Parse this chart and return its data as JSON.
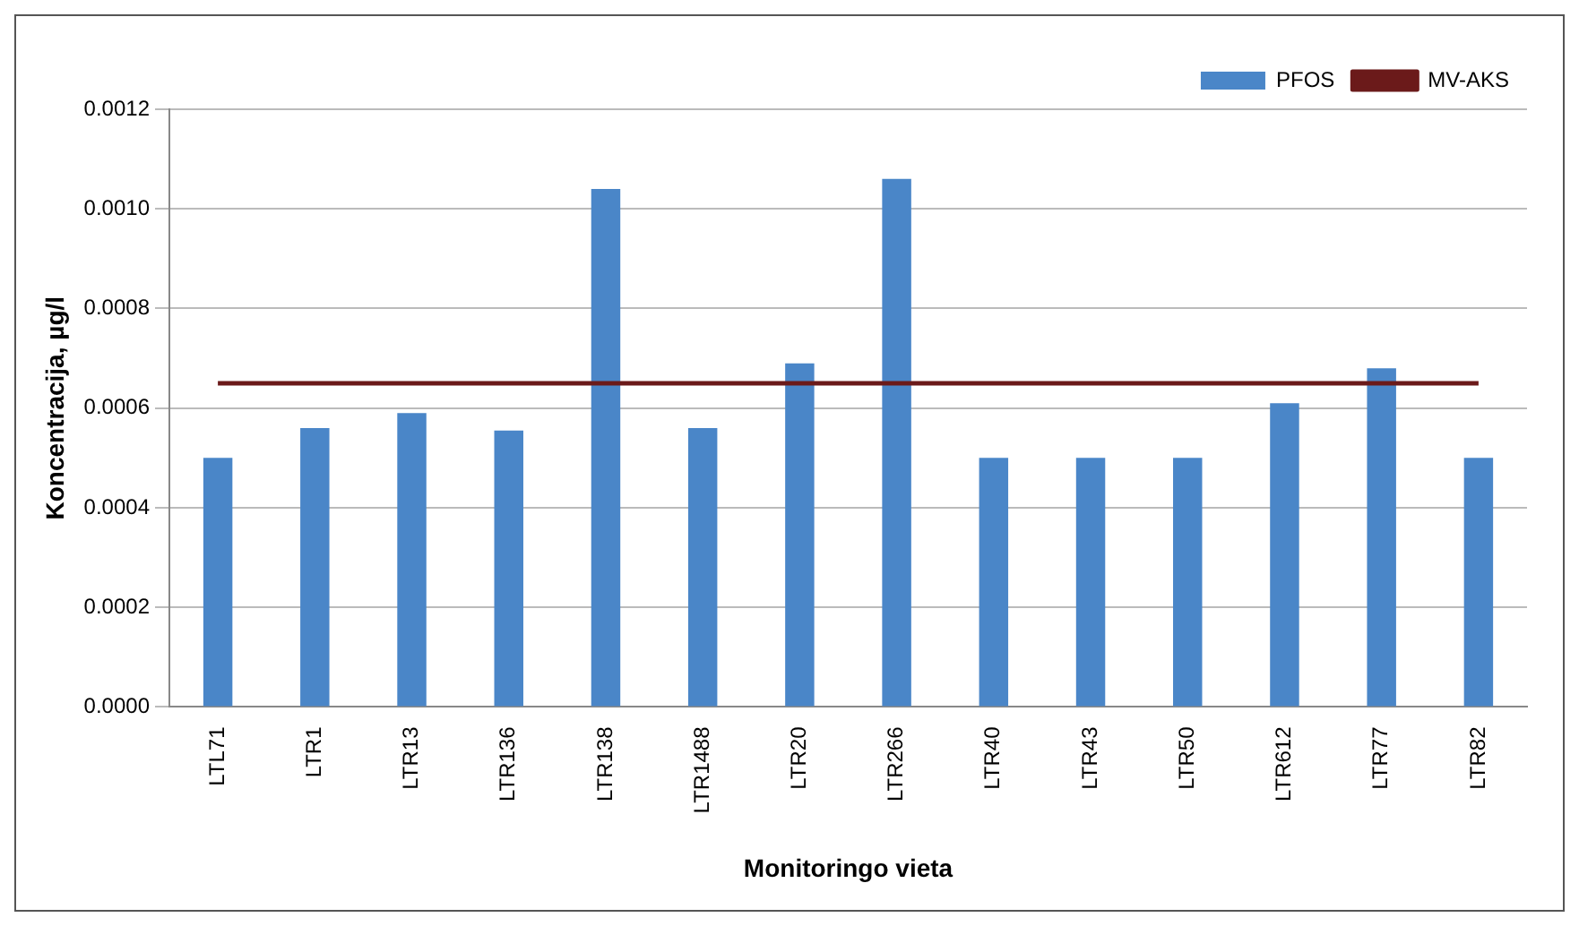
{
  "chart_data": {
    "type": "bar",
    "xlabel": "Monitoringo vieta",
    "ylabel": "Koncentracija, µg/l",
    "categories": [
      "LTL71",
      "LTR1",
      "LTR13",
      "LTR136",
      "LTR138",
      "LTR1488",
      "LTR20",
      "LTR266",
      "LTR40",
      "LTR43",
      "LTR50",
      "LTR612",
      "LTR77",
      "LTR82"
    ],
    "series": [
      {
        "name": "PFOS",
        "color": "#4a86c8",
        "values": [
          0.0005,
          0.00056,
          0.00059,
          0.000555,
          0.00104,
          0.00056,
          0.00069,
          0.00106,
          0.0005,
          0.0005,
          0.0005,
          0.00061,
          0.00068,
          0.0005
        ]
      },
      {
        "name": "MV-AKS",
        "type": "line",
        "color": "#6b1a1a",
        "values": [
          0.00065,
          0.00065,
          0.00065,
          0.00065,
          0.00065,
          0.00065,
          0.00065,
          0.00065,
          0.00065,
          0.00065,
          0.00065,
          0.00065,
          0.00065,
          0.00065
        ]
      }
    ],
    "ylim": [
      0,
      0.0012
    ],
    "yticks": [
      {
        "value": 0,
        "label": "0.0000"
      },
      {
        "value": 0.0002,
        "label": "0.0002"
      },
      {
        "value": 0.0004,
        "label": "0.0004"
      },
      {
        "value": 0.0006,
        "label": "0.0006"
      },
      {
        "value": 0.0008,
        "label": "0.0008"
      },
      {
        "value": 0.001,
        "label": "0.0010"
      },
      {
        "value": 0.0012,
        "label": "0.0012"
      }
    ],
    "grid": "y",
    "legend": "top right",
    "marker": "none"
  }
}
